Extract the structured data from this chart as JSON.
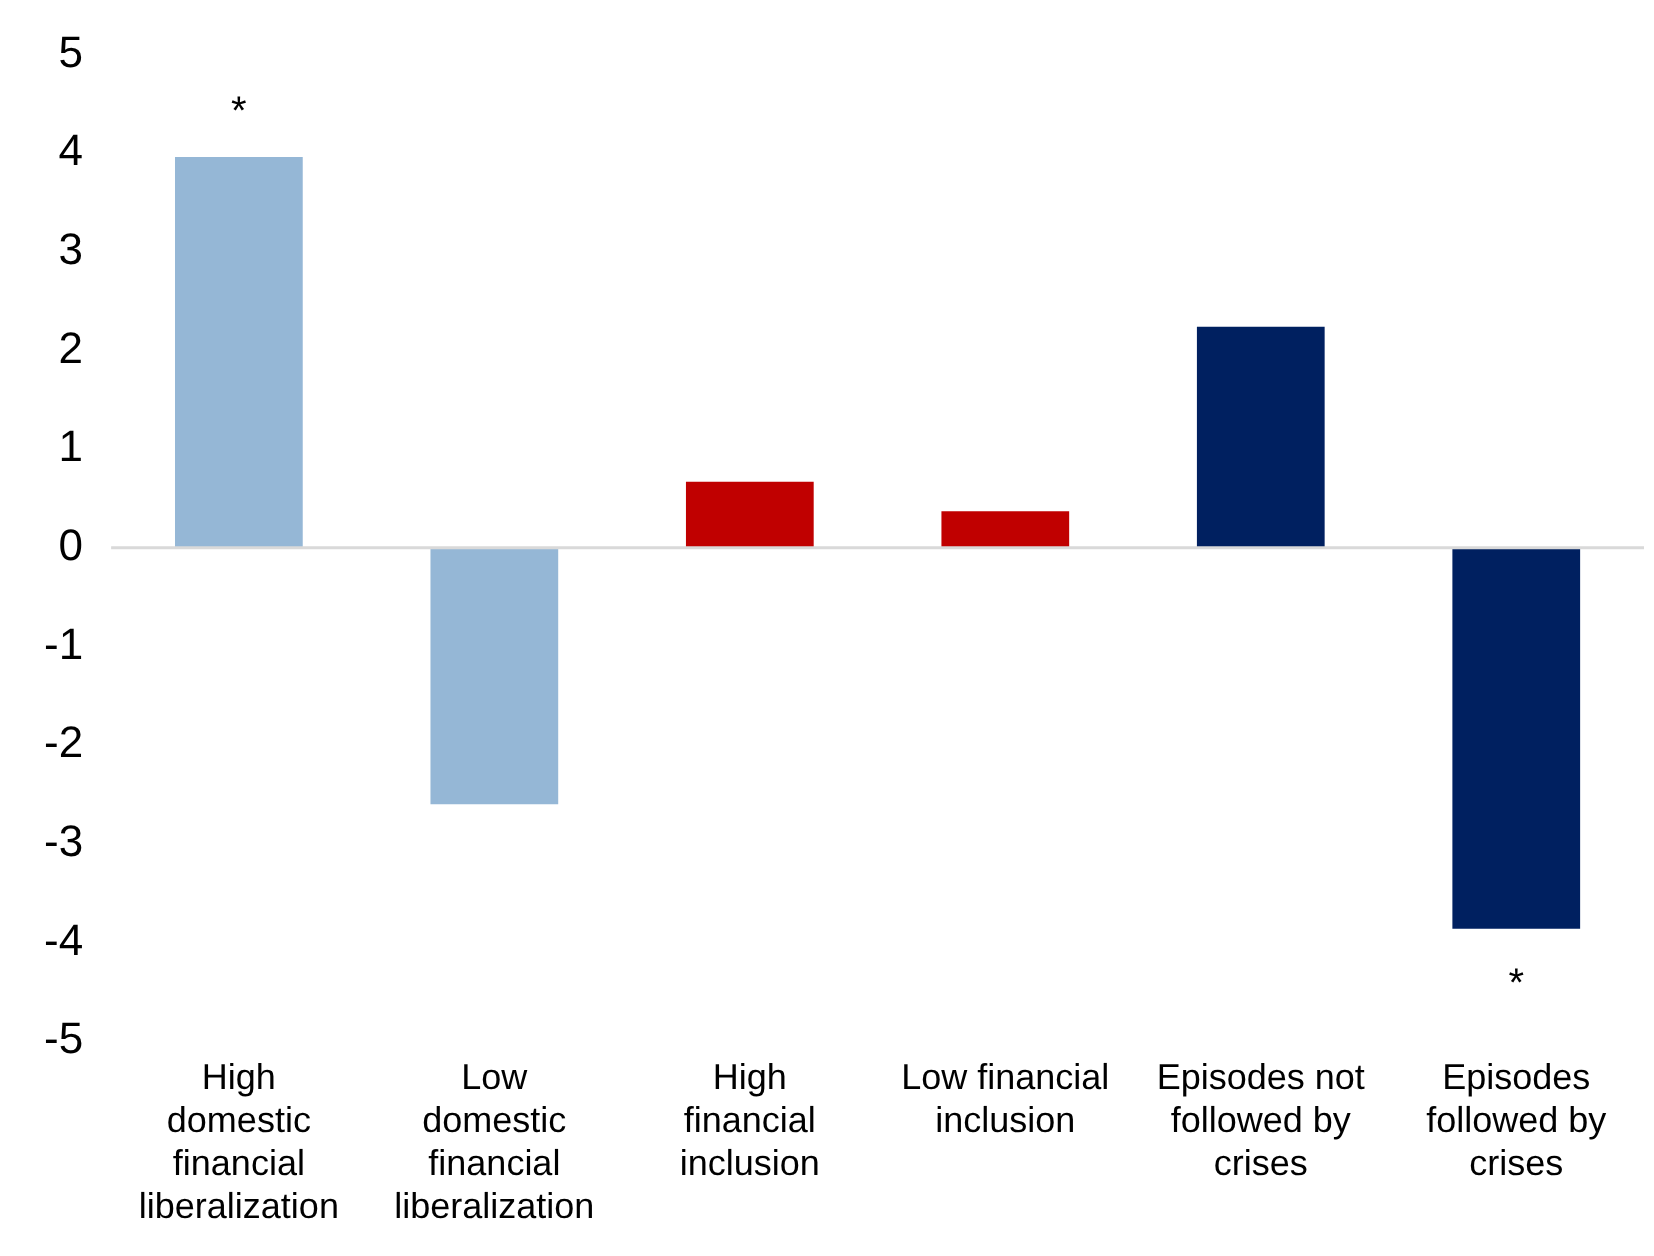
{
  "chart_data": {
    "type": "bar",
    "categories": [
      "High domestic financial liberalization",
      "Low domestic financial liberalization",
      "High financial inclusion",
      "Low financial inclusion",
      "Episodes not followed by crises",
      "Episodes followed by crises"
    ],
    "values": [
      3.96,
      -2.6,
      0.67,
      0.37,
      2.24,
      -3.86
    ],
    "colors": [
      "#95b7d6",
      "#95b7d6",
      "#c00000",
      "#c00000",
      "#002060",
      "#002060"
    ],
    "ylim": [
      -5,
      5
    ],
    "yticks": [
      -5,
      -4,
      -3,
      -2,
      -1,
      0,
      1,
      2,
      3,
      4,
      5
    ],
    "grid": false,
    "ref_lines": [
      {
        "axis": "y",
        "value": 0,
        "color": "#d9d9d9"
      }
    ],
    "annotations": [
      {
        "text": "*",
        "x": "High domestic financial liberalization",
        "y": 3.96
      },
      {
        "text": "*",
        "x": "Episodes followed by crises",
        "y": -3.86
      }
    ]
  }
}
